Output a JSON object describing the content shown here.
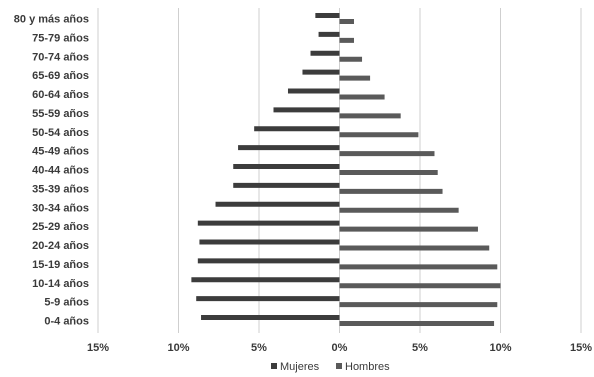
{
  "chart_data": {
    "type": "bar",
    "orientation": "horizontal",
    "categories": [
      "0-4 años",
      "5-9 años",
      "10-14 años",
      "15-19 años",
      "20-24 años",
      "25-29 años",
      "30-34 años",
      "35-39 años",
      "40-44 años",
      "45-49 años",
      "50-54 años",
      "55-59 años",
      "60-64 años",
      "65-69 años",
      "70-74 años",
      "75-79 años",
      "80 y más años"
    ],
    "series": [
      {
        "name": "Mujeres",
        "values": [
          8.6,
          8.9,
          9.2,
          8.8,
          8.7,
          8.8,
          7.7,
          6.6,
          6.6,
          6.3,
          5.3,
          4.1,
          3.2,
          2.3,
          1.8,
          1.3,
          1.5
        ],
        "color": "#3c3c3c"
      },
      {
        "name": "Hombres",
        "values": [
          9.6,
          9.8,
          10.0,
          9.8,
          9.3,
          8.6,
          7.4,
          6.4,
          6.1,
          5.9,
          4.9,
          3.8,
          2.8,
          1.9,
          1.4,
          0.9,
          0.9
        ],
        "color": "#5a5a5a"
      }
    ],
    "xlim": [
      -15,
      15
    ],
    "xticks": [
      -15,
      -10,
      -5,
      0,
      5,
      10,
      15
    ],
    "tick_labels": [
      "15%",
      "10%",
      "5%",
      "0%",
      "5%",
      "10%",
      "15%"
    ],
    "grid": "vertical",
    "legend_position": "bottom",
    "title": "",
    "xlabel": "",
    "ylabel": ""
  },
  "legend": {
    "mujeres_label": "Mujeres",
    "hombres_label": "Hombres"
  }
}
